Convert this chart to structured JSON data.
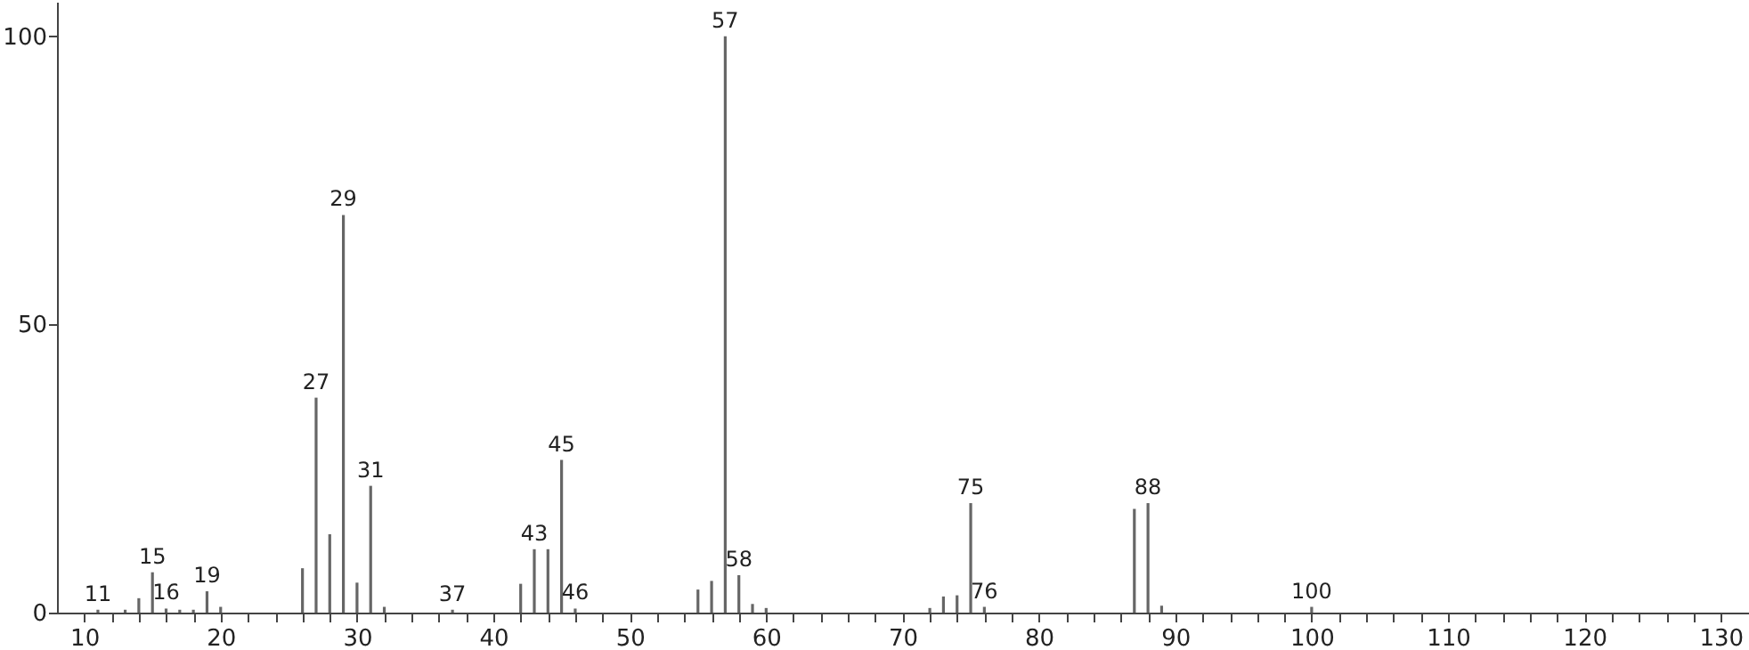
{
  "chart_data": {
    "type": "bar",
    "color": "#666666",
    "x": [
      11,
      13,
      14,
      15,
      16,
      17,
      18,
      19,
      20,
      26,
      27,
      28,
      29,
      30,
      31,
      32,
      37,
      42,
      43,
      44,
      45,
      46,
      55,
      56,
      57,
      58,
      59,
      60,
      72,
      73,
      74,
      75,
      76,
      87,
      88,
      89,
      100
    ],
    "values": [
      0.5,
      0.5,
      2.5,
      7,
      0.7,
      0.5,
      0.5,
      3.7,
      1,
      7.7,
      37.3,
      13.6,
      69,
      5.2,
      22,
      1,
      0.5,
      5,
      11,
      11,
      26.5,
      0.7,
      4,
      5.5,
      100,
      6.5,
      1.5,
      0.8,
      0.8,
      2.8,
      3,
      19,
      1,
      18,
      19,
      1.2,
      1
    ],
    "xlim": [
      8,
      132.2
    ],
    "xticks": [
      10,
      {
        "value": 12,
        "label": null
      },
      {
        "value": 14,
        "label": null
      },
      {
        "value": 16,
        "label": null
      },
      {
        "value": 18,
        "label": null
      },
      20,
      {
        "value": 22,
        "label": null
      },
      {
        "value": 24,
        "label": null
      },
      {
        "value": 26,
        "label": null
      },
      {
        "value": 28,
        "label": null
      },
      30,
      {
        "value": 32,
        "label": null
      },
      {
        "value": 34,
        "label": null
      },
      {
        "value": 36,
        "label": null
      },
      {
        "value": 38,
        "label": null
      },
      40,
      {
        "value": 42,
        "label": null
      },
      {
        "value": 44,
        "label": null
      },
      {
        "value": 46,
        "label": null
      },
      {
        "value": 48,
        "label": null
      },
      50,
      {
        "value": 52,
        "label": null
      },
      {
        "value": 54,
        "label": null
      },
      {
        "value": 56,
        "label": null
      },
      {
        "value": 58,
        "label": null
      },
      60,
      {
        "value": 62,
        "label": null
      },
      {
        "value": 64,
        "label": null
      },
      {
        "value": 66,
        "label": null
      },
      {
        "value": 68,
        "label": null
      },
      70,
      {
        "value": 72,
        "label": null
      },
      {
        "value": 74,
        "label": null
      },
      {
        "value": 76,
        "label": null
      },
      {
        "value": 78,
        "label": null
      },
      80,
      {
        "value": 82,
        "label": null
      },
      {
        "value": 84,
        "label": null
      },
      {
        "value": 86,
        "label": null
      },
      {
        "value": 88,
        "label": null
      },
      90,
      {
        "value": 92,
        "label": null
      },
      {
        "value": 94,
        "label": null
      },
      {
        "value": 96,
        "label": null
      },
      {
        "value": 98,
        "label": null
      },
      100,
      {
        "value": 102,
        "label": null
      },
      {
        "value": 104,
        "label": null
      },
      {
        "value": 106,
        "label": null
      },
      {
        "value": 108,
        "label": null
      },
      110,
      {
        "value": 112,
        "label": null
      },
      {
        "value": 114,
        "label": null
      },
      {
        "value": 116,
        "label": null
      },
      {
        "value": 118,
        "label": null
      },
      120,
      {
        "value": 122,
        "label": null
      },
      {
        "value": 124,
        "label": null
      },
      {
        "value": 126,
        "label": null
      },
      {
        "value": 128,
        "label": null
      },
      130
    ],
    "ylim": [
      0,
      106
    ],
    "yticks": [
      0,
      50,
      100
    ],
    "annotations": [
      {
        "text": "11",
        "x": 11,
        "y": 0.5
      },
      {
        "text": "15",
        "x": 15,
        "y": 7
      },
      {
        "text": "16",
        "x": 16,
        "y": 0.7
      },
      {
        "text": "19",
        "x": 19,
        "y": 3.7
      },
      {
        "text": "27",
        "x": 27,
        "y": 37.3
      },
      {
        "text": "29",
        "x": 29,
        "y": 69
      },
      {
        "text": "31",
        "x": 31,
        "y": 22
      },
      {
        "text": "37",
        "x": 37,
        "y": 0.5
      },
      {
        "text": "43",
        "x": 43,
        "y": 11
      },
      {
        "text": "45",
        "x": 45,
        "y": 26.5
      },
      {
        "text": "46",
        "x": 46,
        "y": 0.7
      },
      {
        "text": "57",
        "x": 57,
        "y": 100
      },
      {
        "text": "58",
        "x": 58,
        "y": 6.5
      },
      {
        "text": "75",
        "x": 75,
        "y": 19
      },
      {
        "text": "76",
        "x": 76,
        "y": 1
      },
      {
        "text": "88",
        "x": 88,
        "y": 19
      },
      {
        "text": "100",
        "x": 100,
        "y": 1
      }
    ]
  }
}
